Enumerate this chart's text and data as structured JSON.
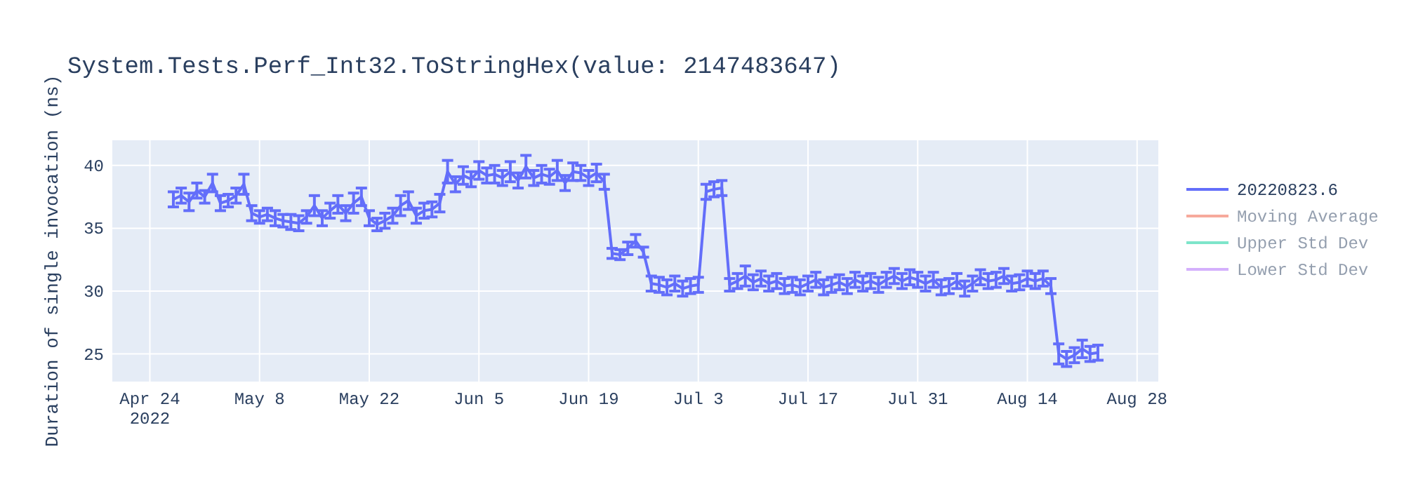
{
  "chart_data": {
    "type": "line",
    "title": "System.Tests.Perf_Int32.ToStringHex(value: 2147483647)",
    "ylabel": "Duration of single invocation (ns)",
    "xlim": [
      "2022-04-19T05:00",
      "2022-08-30T17:00"
    ],
    "xticks": [
      {
        "value": "2022-04-24",
        "label": "Apr 24\n2022"
      },
      {
        "value": "2022-05-08",
        "label": "May 8"
      },
      {
        "value": "2022-05-22",
        "label": "May 22"
      },
      {
        "value": "2022-06-05",
        "label": "Jun 5"
      },
      {
        "value": "2022-06-19",
        "label": "Jun 19"
      },
      {
        "value": "2022-07-03",
        "label": "Jul 3"
      },
      {
        "value": "2022-07-17",
        "label": "Jul 17"
      },
      {
        "value": "2022-07-31",
        "label": "Jul 31"
      },
      {
        "value": "2022-08-14",
        "label": "Aug 14"
      },
      {
        "value": "2022-08-28",
        "label": "Aug 28"
      }
    ],
    "ylim": [
      22.8,
      42.0
    ],
    "yticks": [
      25,
      30,
      35,
      40
    ],
    "grid": true,
    "legend": "top right",
    "line_style": "solid",
    "series": [
      {
        "name": "20220823.6",
        "color": "#636efa",
        "x": [
          "2022-04-27",
          "2022-04-28",
          "2022-04-29",
          "2022-04-30",
          "2022-05-01",
          "2022-05-02",
          "2022-05-03",
          "2022-05-04",
          "2022-05-05",
          "2022-05-06",
          "2022-05-07",
          "2022-05-08",
          "2022-05-09",
          "2022-05-10",
          "2022-05-11",
          "2022-05-12",
          "2022-05-13",
          "2022-05-14",
          "2022-05-15",
          "2022-05-16",
          "2022-05-17",
          "2022-05-18",
          "2022-05-19",
          "2022-05-20",
          "2022-05-21",
          "2022-05-22",
          "2022-05-23",
          "2022-05-24",
          "2022-05-25",
          "2022-05-26",
          "2022-05-27",
          "2022-05-28",
          "2022-05-29",
          "2022-05-30",
          "2022-05-31",
          "2022-06-01",
          "2022-06-02",
          "2022-06-03",
          "2022-06-04",
          "2022-06-05",
          "2022-06-06",
          "2022-06-07",
          "2022-06-08",
          "2022-06-09",
          "2022-06-10",
          "2022-06-11",
          "2022-06-12",
          "2022-06-13",
          "2022-06-14",
          "2022-06-15",
          "2022-06-16",
          "2022-06-17",
          "2022-06-18",
          "2022-06-19",
          "2022-06-20",
          "2022-06-21",
          "2022-06-22",
          "2022-06-23",
          "2022-06-24",
          "2022-06-25",
          "2022-06-26",
          "2022-06-27",
          "2022-06-28",
          "2022-06-29",
          "2022-06-30",
          "2022-07-01",
          "2022-07-02",
          "2022-07-03",
          "2022-07-04",
          "2022-07-05",
          "2022-07-06",
          "2022-07-07",
          "2022-07-08",
          "2022-07-09",
          "2022-07-10",
          "2022-07-11",
          "2022-07-12",
          "2022-07-13",
          "2022-07-14",
          "2022-07-15",
          "2022-07-16",
          "2022-07-17",
          "2022-07-18",
          "2022-07-19",
          "2022-07-20",
          "2022-07-21",
          "2022-07-22",
          "2022-07-23",
          "2022-07-24",
          "2022-07-25",
          "2022-07-26",
          "2022-07-27",
          "2022-07-28",
          "2022-07-29",
          "2022-07-30",
          "2022-07-31",
          "2022-08-01",
          "2022-08-02",
          "2022-08-03",
          "2022-08-04",
          "2022-08-05",
          "2022-08-06",
          "2022-08-07",
          "2022-08-08",
          "2022-08-09",
          "2022-08-10",
          "2022-08-11",
          "2022-08-12",
          "2022-08-13",
          "2022-08-14",
          "2022-08-15",
          "2022-08-16",
          "2022-08-17",
          "2022-08-18",
          "2022-08-19",
          "2022-08-20",
          "2022-08-21",
          "2022-08-22",
          "2022-08-23"
        ],
        "values": [
          37.3,
          37.6,
          37.1,
          38.0,
          37.5,
          38.6,
          37.0,
          37.2,
          37.6,
          38.5,
          36.2,
          35.9,
          36.1,
          35.8,
          35.6,
          35.5,
          35.4,
          35.9,
          36.8,
          35.8,
          36.4,
          36.9,
          36.2,
          37.0,
          37.5,
          35.8,
          35.3,
          35.6,
          36.0,
          36.8,
          37.2,
          36.0,
          36.4,
          36.5,
          37.0,
          39.5,
          38.5,
          39.2,
          38.9,
          39.6,
          39.2,
          39.3,
          39.0,
          39.5,
          38.8,
          39.9,
          39.0,
          39.3,
          39.1,
          39.6,
          38.6,
          39.5,
          39.4,
          39.0,
          39.4,
          38.7,
          33.0,
          32.9,
          33.4,
          34.0,
          33.1,
          30.6,
          30.5,
          30.3,
          30.6,
          30.2,
          30.4,
          30.5,
          37.9,
          38.1,
          38.2,
          30.5,
          30.8,
          31.2,
          30.7,
          31.0,
          30.6,
          30.8,
          30.4,
          30.5,
          30.3,
          30.6,
          30.9,
          30.3,
          30.5,
          30.7,
          30.4,
          30.9,
          30.6,
          30.8,
          30.5,
          30.9,
          31.2,
          30.8,
          31.1,
          30.9,
          30.6,
          30.9,
          30.3,
          30.4,
          30.8,
          30.2,
          30.6,
          31.1,
          30.8,
          30.9,
          31.2,
          30.6,
          30.7,
          31.0,
          30.8,
          31.0,
          30.4,
          25.0,
          24.6,
          24.9,
          25.4,
          25.0,
          25.1
        ],
        "errors": [
          0.6,
          0.6,
          0.7,
          0.6,
          0.5,
          0.7,
          0.6,
          0.5,
          0.6,
          0.8,
          0.6,
          0.5,
          0.5,
          0.6,
          0.5,
          0.6,
          0.6,
          0.5,
          0.8,
          0.6,
          0.6,
          0.7,
          0.6,
          0.8,
          0.7,
          0.6,
          0.5,
          0.6,
          0.6,
          0.8,
          0.7,
          0.6,
          0.6,
          0.6,
          0.7,
          0.9,
          0.6,
          0.7,
          0.6,
          0.7,
          0.6,
          0.7,
          0.6,
          0.8,
          0.6,
          0.9,
          0.6,
          0.7,
          0.6,
          0.8,
          0.6,
          0.7,
          0.6,
          0.6,
          0.7,
          0.6,
          0.4,
          0.4,
          0.5,
          0.5,
          0.4,
          0.6,
          0.6,
          0.6,
          0.6,
          0.6,
          0.6,
          0.6,
          0.6,
          0.6,
          0.6,
          0.5,
          0.6,
          0.8,
          0.6,
          0.6,
          0.6,
          0.6,
          0.6,
          0.6,
          0.6,
          0.6,
          0.6,
          0.6,
          0.6,
          0.6,
          0.6,
          0.6,
          0.6,
          0.6,
          0.6,
          0.6,
          0.6,
          0.6,
          0.6,
          0.6,
          0.6,
          0.6,
          0.6,
          0.6,
          0.6,
          0.6,
          0.6,
          0.6,
          0.6,
          0.6,
          0.6,
          0.6,
          0.6,
          0.6,
          0.6,
          0.6,
          0.6,
          0.8,
          0.6,
          0.6,
          0.7,
          0.6,
          0.6
        ]
      },
      {
        "name": "Moving Average",
        "color": "#ef553b"
      },
      {
        "name": "Upper Std Dev",
        "color": "#00cc96"
      },
      {
        "name": "Lower Std Dev",
        "color": "#ab63fa"
      }
    ]
  }
}
